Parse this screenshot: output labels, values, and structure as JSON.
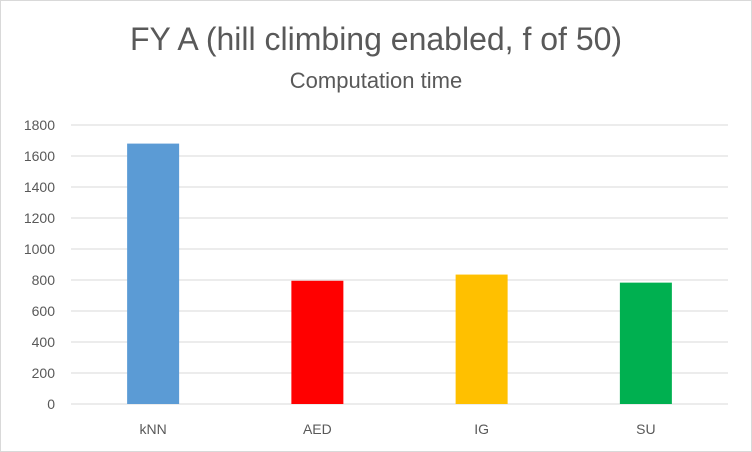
{
  "chart_data": {
    "type": "bar",
    "title": "FY A (hill climbing enabled, f of 50)",
    "subtitle": "Computation time",
    "categories": [
      "kNN",
      "AED",
      "IG",
      "SU"
    ],
    "values": [
      1680,
      795,
      835,
      783
    ],
    "colors": [
      "#5b9bd5",
      "#ff0000",
      "#ffc000",
      "#00b050"
    ],
    "ylim": [
      0,
      1800
    ],
    "yticks": [
      0,
      200,
      400,
      600,
      800,
      1000,
      1200,
      1400,
      1600,
      1800
    ],
    "grid": true,
    "legend": "none"
  }
}
